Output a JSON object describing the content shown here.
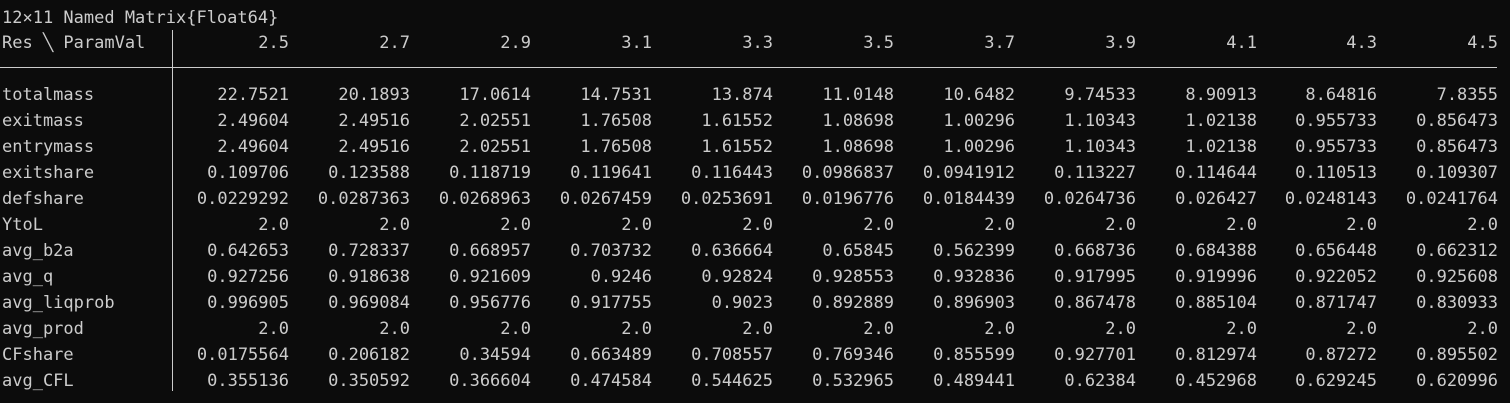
{
  "title": "12×11 Named Matrix{Float64}",
  "corner_label": "Res ╲ ParamVal",
  "columns": [
    "2.5",
    "2.7",
    "2.9",
    "3.1",
    "3.3",
    "3.5",
    "3.7",
    "3.9",
    "4.1",
    "4.3",
    "4.5"
  ],
  "rows": [
    {
      "label": "totalmass",
      "values": [
        "22.7521",
        "20.1893",
        "17.0614",
        "14.7531",
        "13.874",
        "11.0148",
        "10.6482",
        "9.74533",
        "8.90913",
        "8.64816",
        "7.8355"
      ]
    },
    {
      "label": "exitmass",
      "values": [
        "2.49604",
        "2.49516",
        "2.02551",
        "1.76508",
        "1.61552",
        "1.08698",
        "1.00296",
        "1.10343",
        "1.02138",
        "0.955733",
        "0.856473"
      ]
    },
    {
      "label": "entrymass",
      "values": [
        "2.49604",
        "2.49516",
        "2.02551",
        "1.76508",
        "1.61552",
        "1.08698",
        "1.00296",
        "1.10343",
        "1.02138",
        "0.955733",
        "0.856473"
      ]
    },
    {
      "label": "exitshare",
      "values": [
        "0.109706",
        "0.123588",
        "0.118719",
        "0.119641",
        "0.116443",
        "0.0986837",
        "0.0941912",
        "0.113227",
        "0.114644",
        "0.110513",
        "0.109307"
      ]
    },
    {
      "label": "defshare",
      "values": [
        "0.0229292",
        "0.0287363",
        "0.0268963",
        "0.0267459",
        "0.0253691",
        "0.0196776",
        "0.0184439",
        "0.0264736",
        "0.026427",
        "0.0248143",
        "0.0241764"
      ]
    },
    {
      "label": "YtoL",
      "values": [
        "2.0",
        "2.0",
        "2.0",
        "2.0",
        "2.0",
        "2.0",
        "2.0",
        "2.0",
        "2.0",
        "2.0",
        "2.0"
      ]
    },
    {
      "label": "avg_b2a",
      "values": [
        "0.642653",
        "0.728337",
        "0.668957",
        "0.703732",
        "0.636664",
        "0.65845",
        "0.562399",
        "0.668736",
        "0.684388",
        "0.656448",
        "0.662312"
      ]
    },
    {
      "label": "avg_q",
      "values": [
        "0.927256",
        "0.918638",
        "0.921609",
        "0.9246",
        "0.92824",
        "0.928553",
        "0.932836",
        "0.917995",
        "0.919996",
        "0.922052",
        "0.925608"
      ]
    },
    {
      "label": "avg_liqprob",
      "values": [
        "0.996905",
        "0.969084",
        "0.956776",
        "0.917755",
        "0.9023",
        "0.892889",
        "0.896903",
        "0.867478",
        "0.885104",
        "0.871747",
        "0.830933"
      ]
    },
    {
      "label": "avg_prod",
      "values": [
        "2.0",
        "2.0",
        "2.0",
        "2.0",
        "2.0",
        "2.0",
        "2.0",
        "2.0",
        "2.0",
        "2.0",
        "2.0"
      ]
    },
    {
      "label": "CFshare",
      "values": [
        "0.0175564",
        "0.206182",
        "0.34594",
        "0.663489",
        "0.708557",
        "0.769346",
        "0.855599",
        "0.927701",
        "0.812974",
        "0.87272",
        "0.895502"
      ]
    },
    {
      "label": "avg_CFL",
      "values": [
        "0.355136",
        "0.350592",
        "0.366604",
        "0.474584",
        "0.544625",
        "0.532965",
        "0.489441",
        "0.62384",
        "0.452968",
        "0.629245",
        "0.620996"
      ]
    }
  ]
}
